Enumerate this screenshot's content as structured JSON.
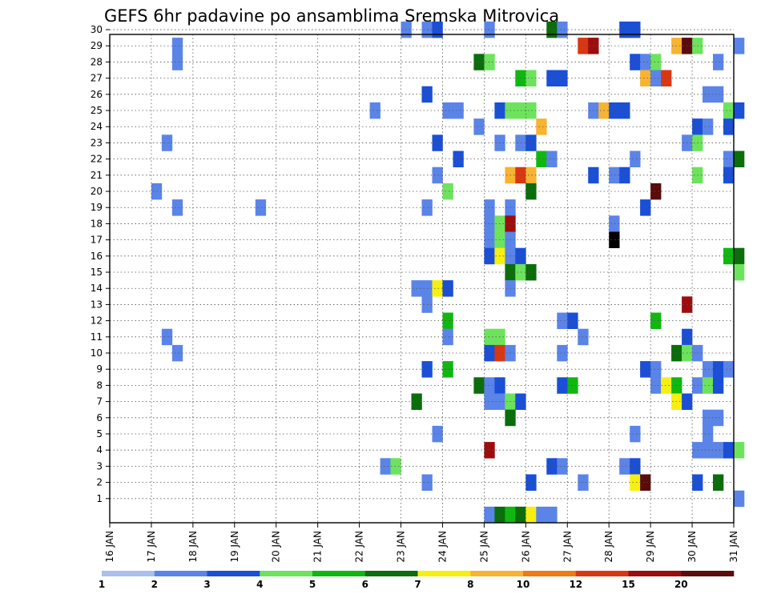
{
  "chart_data": {
    "type": "heatmap",
    "title": "GEFS 6hr padavine po ansamblima Sremska Mitrovica",
    "xlabel": "",
    "ylabel": "",
    "x_unit": "6h step",
    "x_ticks": [
      "16 JAN",
      "17 JAN",
      "18 JAN",
      "19 JAN",
      "20 JAN",
      "21 JAN",
      "22 JAN",
      "23 JAN",
      "24 JAN",
      "25 JAN",
      "26 JAN",
      "27 JAN",
      "28 JAN",
      "29 JAN",
      "30 JAN",
      "31 JAN"
    ],
    "xlim": [
      0,
      60
    ],
    "y_ticks": [
      1,
      2,
      3,
      4,
      5,
      6,
      7,
      8,
      9,
      10,
      11,
      12,
      13,
      14,
      15,
      16,
      17,
      18,
      19,
      20,
      21,
      22,
      23,
      24,
      25,
      26,
      27,
      28,
      29,
      30
    ],
    "ylim": [
      0,
      30
    ],
    "grid": true,
    "colorbar": {
      "levels": [
        "1",
        "2",
        "3",
        "4",
        "5",
        "6",
        "7",
        "8",
        "10",
        "12",
        "15",
        "20"
      ],
      "colors": [
        "#aabfee",
        "#5b84e8",
        "#1a4fd6",
        "#6de35d",
        "#10b710",
        "#0b6d0b",
        "#f7ef10",
        "#f7b331",
        "#ef7a16",
        "#d93712",
        "#9c0d0d",
        "#5a0b0b"
      ],
      "position": "bottom"
    },
    "cells": [
      [
        28,
        30,
        1
      ],
      [
        30,
        30,
        1
      ],
      [
        31,
        30,
        2
      ],
      [
        36,
        30,
        1
      ],
      [
        42,
        30,
        5
      ],
      [
        43,
        30,
        1
      ],
      [
        49,
        30,
        2
      ],
      [
        50,
        30,
        2
      ],
      [
        6,
        29,
        1
      ],
      [
        45,
        29,
        9
      ],
      [
        46,
        29,
        10
      ],
      [
        54,
        29,
        7
      ],
      [
        55,
        29,
        11
      ],
      [
        56,
        29,
        3
      ],
      [
        60,
        29,
        1
      ],
      [
        6,
        28,
        1
      ],
      [
        35,
        28,
        5
      ],
      [
        36,
        28,
        3
      ],
      [
        50,
        28,
        2
      ],
      [
        51,
        28,
        1
      ],
      [
        52,
        28,
        3
      ],
      [
        58,
        28,
        1
      ],
      [
        39,
        27,
        4
      ],
      [
        40,
        27,
        3
      ],
      [
        42,
        27,
        2
      ],
      [
        43,
        27,
        2
      ],
      [
        51,
        27,
        7
      ],
      [
        52,
        27,
        1
      ],
      [
        53,
        27,
        9
      ],
      [
        30,
        26,
        2
      ],
      [
        57,
        26,
        1
      ],
      [
        58,
        26,
        1
      ],
      [
        25,
        25,
        1
      ],
      [
        32,
        25,
        1
      ],
      [
        33,
        25,
        1
      ],
      [
        37,
        25,
        2
      ],
      [
        38,
        25,
        3
      ],
      [
        39,
        25,
        3
      ],
      [
        40,
        25,
        3
      ],
      [
        46,
        25,
        1
      ],
      [
        47,
        25,
        7
      ],
      [
        48,
        25,
        2
      ],
      [
        49,
        25,
        2
      ],
      [
        59,
        25,
        3
      ],
      [
        60,
        25,
        2
      ],
      [
        35,
        24,
        1
      ],
      [
        41,
        24,
        7
      ],
      [
        56,
        24,
        2
      ],
      [
        57,
        24,
        1
      ],
      [
        59,
        24,
        2
      ],
      [
        5,
        23,
        1
      ],
      [
        31,
        23,
        2
      ],
      [
        37,
        23,
        1
      ],
      [
        39,
        23,
        1
      ],
      [
        40,
        23,
        2
      ],
      [
        55,
        23,
        1
      ],
      [
        56,
        23,
        3
      ],
      [
        33,
        22,
        2
      ],
      [
        41,
        22,
        4
      ],
      [
        42,
        22,
        1
      ],
      [
        50,
        22,
        1
      ],
      [
        59,
        22,
        1
      ],
      [
        60,
        22,
        5
      ],
      [
        31,
        21,
        1
      ],
      [
        38,
        21,
        7
      ],
      [
        39,
        21,
        9
      ],
      [
        40,
        21,
        7
      ],
      [
        46,
        21,
        2
      ],
      [
        48,
        21,
        1
      ],
      [
        49,
        21,
        2
      ],
      [
        56,
        21,
        3
      ],
      [
        59,
        21,
        2
      ],
      [
        4,
        20,
        1
      ],
      [
        32,
        20,
        3
      ],
      [
        40,
        20,
        5
      ],
      [
        52,
        20,
        11
      ],
      [
        6,
        19,
        1
      ],
      [
        14,
        19,
        1
      ],
      [
        30,
        19,
        1
      ],
      [
        36,
        19,
        1
      ],
      [
        38,
        19,
        1
      ],
      [
        51,
        19,
        2
      ],
      [
        36,
        18,
        1
      ],
      [
        37,
        18,
        3
      ],
      [
        38,
        18,
        10
      ],
      [
        48,
        18,
        1
      ],
      [
        36,
        17,
        1
      ],
      [
        37,
        17,
        3
      ],
      [
        38,
        17,
        1
      ],
      [
        48,
        17,
        12
      ],
      [
        36,
        16,
        2
      ],
      [
        37,
        16,
        6
      ],
      [
        38,
        16,
        1
      ],
      [
        39,
        16,
        2
      ],
      [
        59,
        16,
        4
      ],
      [
        60,
        16,
        5
      ],
      [
        38,
        15,
        5
      ],
      [
        39,
        15,
        3
      ],
      [
        40,
        15,
        5
      ],
      [
        60,
        15,
        3
      ],
      [
        29,
        14,
        1
      ],
      [
        30,
        14,
        1
      ],
      [
        31,
        14,
        6
      ],
      [
        32,
        14,
        2
      ],
      [
        38,
        14,
        1
      ],
      [
        30,
        13,
        1
      ],
      [
        55,
        13,
        10
      ],
      [
        32,
        12,
        4
      ],
      [
        43,
        12,
        1
      ],
      [
        44,
        12,
        2
      ],
      [
        52,
        12,
        4
      ],
      [
        5,
        11,
        1
      ],
      [
        32,
        11,
        1
      ],
      [
        36,
        11,
        3
      ],
      [
        37,
        11,
        3
      ],
      [
        45,
        11,
        1
      ],
      [
        55,
        11,
        2
      ],
      [
        6,
        10,
        1
      ],
      [
        36,
        10,
        2
      ],
      [
        37,
        10,
        9
      ],
      [
        38,
        10,
        1
      ],
      [
        43,
        10,
        1
      ],
      [
        54,
        10,
        5
      ],
      [
        55,
        10,
        3
      ],
      [
        56,
        10,
        1
      ],
      [
        30,
        9,
        2
      ],
      [
        32,
        9,
        4
      ],
      [
        51,
        9,
        2
      ],
      [
        52,
        9,
        1
      ],
      [
        57,
        9,
        1
      ],
      [
        58,
        9,
        2
      ],
      [
        59,
        9,
        1
      ],
      [
        35,
        8,
        5
      ],
      [
        36,
        8,
        1
      ],
      [
        37,
        8,
        2
      ],
      [
        43,
        8,
        2
      ],
      [
        44,
        8,
        4
      ],
      [
        52,
        8,
        1
      ],
      [
        53,
        8,
        6
      ],
      [
        54,
        8,
        4
      ],
      [
        56,
        8,
        1
      ],
      [
        57,
        8,
        3
      ],
      [
        58,
        8,
        2
      ],
      [
        29,
        7,
        5
      ],
      [
        36,
        7,
        1
      ],
      [
        37,
        7,
        1
      ],
      [
        38,
        7,
        3
      ],
      [
        39,
        7,
        2
      ],
      [
        54,
        7,
        6
      ],
      [
        55,
        7,
        2
      ],
      [
        38,
        6,
        5
      ],
      [
        57,
        6,
        1
      ],
      [
        58,
        6,
        1
      ],
      [
        31,
        5,
        1
      ],
      [
        50,
        5,
        1
      ],
      [
        57,
        5,
        1
      ],
      [
        36,
        4,
        10
      ],
      [
        56,
        4,
        1
      ],
      [
        57,
        4,
        1
      ],
      [
        58,
        4,
        1
      ],
      [
        59,
        4,
        2
      ],
      [
        60,
        4,
        3
      ],
      [
        26,
        3,
        1
      ],
      [
        27,
        3,
        3
      ],
      [
        42,
        3,
        2
      ],
      [
        43,
        3,
        1
      ],
      [
        49,
        3,
        1
      ],
      [
        50,
        3,
        2
      ],
      [
        30,
        2,
        1
      ],
      [
        40,
        2,
        2
      ],
      [
        45,
        2,
        1
      ],
      [
        50,
        2,
        6
      ],
      [
        51,
        2,
        11
      ],
      [
        56,
        2,
        2
      ],
      [
        58,
        2,
        5
      ],
      [
        60,
        1,
        1
      ],
      [
        36,
        0,
        1
      ],
      [
        37,
        0,
        5
      ],
      [
        38,
        0,
        4
      ],
      [
        39,
        0,
        5
      ],
      [
        40,
        0,
        6
      ],
      [
        41,
        0,
        1
      ],
      [
        42,
        0,
        1
      ]
    ]
  }
}
